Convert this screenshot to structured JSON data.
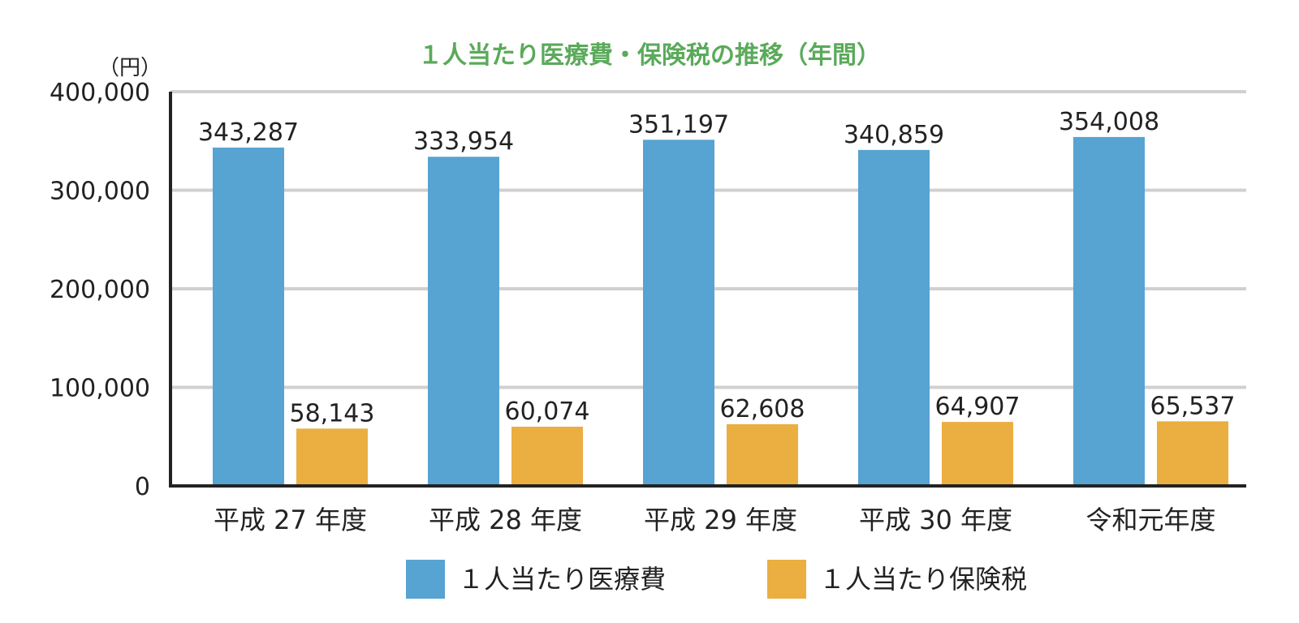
{
  "chart_data": {
    "type": "bar",
    "title": "１人当たり医療費・保険税の推移（年間）",
    "ylabel": "（円）",
    "xlabel": "",
    "categories": [
      "平成 27 年度",
      "平成 28 年度",
      "平成 29 年度",
      "平成 30 年度",
      "令和元年度"
    ],
    "series": [
      {
        "name": "１人当たり医療費",
        "color": "#57a3d2",
        "values": [
          343287,
          333954,
          351197,
          340859,
          354008
        ]
      },
      {
        "name": "１人当たり保険税",
        "color": "#ebae41",
        "values": [
          58143,
          60074,
          62608,
          64907,
          65537
        ]
      }
    ],
    "ylim": [
      0,
      400000
    ],
    "yticks": [
      0,
      100000,
      200000,
      300000,
      400000
    ],
    "ytick_labels": [
      "0",
      "100,000",
      "200,000",
      "300,000",
      "400,000"
    ],
    "grid": true,
    "legend": "bottom"
  }
}
